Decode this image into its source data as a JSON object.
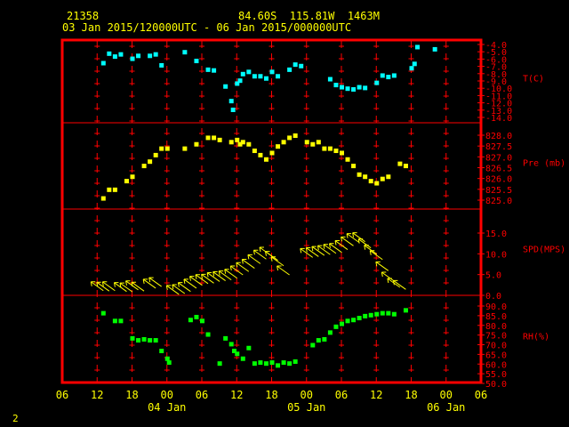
{
  "header": {
    "station": "21358",
    "location": "84.60S  115.81W  1463M",
    "period": "03 Jan 2015/120000UTC - 06 Jan 2015/000000UTC"
  },
  "footer": {
    "page": "2"
  },
  "colors": {
    "frame": "#ff0000",
    "grid": "#ff0000",
    "temp": "#00ffff",
    "pres": "#ffff00",
    "wind": "#ffff00",
    "rh": "#00ff00",
    "text": "#ffff00"
  },
  "chart_data": [
    {
      "type": "scatter",
      "name": "T(C)",
      "ylabel": "T(C)",
      "ylim": [
        -14,
        -4
      ],
      "ticks": [
        "-4.0",
        "-5.0",
        "-6.0",
        "-7.0",
        "-8.0",
        "-9.0",
        "-10.0",
        "-11.0",
        "-12.0",
        "-13.0",
        "-14.0"
      ],
      "tick_values": [
        -4,
        -5,
        -6,
        -7,
        -8,
        -9,
        -10,
        -11,
        -12,
        -13,
        -14
      ],
      "points": [
        [
          13,
          -6.5
        ],
        [
          14,
          -5.2
        ],
        [
          15,
          -5.6
        ],
        [
          16,
          -5.3
        ],
        [
          18,
          -5.9
        ],
        [
          19,
          -5.5
        ],
        [
          21,
          -5.5
        ],
        [
          22,
          -5.3
        ],
        [
          23,
          -6.8
        ],
        [
          27,
          -5.0
        ],
        [
          29,
          -6.2
        ],
        [
          31,
          -7.4
        ],
        [
          32,
          -7.5
        ],
        [
          34,
          -9.7
        ],
        [
          35,
          -11.7
        ],
        [
          35.3,
          -12.9
        ],
        [
          36,
          -9.3
        ],
        [
          36.5,
          -8.9
        ],
        [
          37,
          -8.0
        ],
        [
          38,
          -7.7
        ],
        [
          39,
          -8.3
        ],
        [
          40,
          -8.3
        ],
        [
          41,
          -8.6
        ],
        [
          42,
          -7.7
        ],
        [
          43,
          -8.3
        ],
        [
          45,
          -7.4
        ],
        [
          46,
          -6.7
        ],
        [
          47,
          -6.9
        ],
        [
          52,
          -8.7
        ],
        [
          53,
          -9.5
        ],
        [
          54,
          -9.8
        ],
        [
          55,
          -10.0
        ],
        [
          56,
          -10.1
        ],
        [
          57,
          -9.8
        ],
        [
          58,
          -9.9
        ],
        [
          60,
          -9.2
        ],
        [
          61,
          -8.2
        ],
        [
          62,
          -8.4
        ],
        [
          63,
          -8.2
        ],
        [
          66,
          -7.2
        ],
        [
          66.5,
          -6.6
        ],
        [
          67,
          -4.3
        ],
        [
          70,
          -4.6
        ]
      ]
    },
    {
      "type": "scatter",
      "name": "Pre (mb)",
      "ylabel": "Pre (mb)",
      "ylim": [
        825.0,
        828.0
      ],
      "ticks": [
        "828.0",
        "827.5",
        "827.0",
        "826.5",
        "826.0",
        "825.5",
        "825.0"
      ],
      "tick_values": [
        828.0,
        827.5,
        827.0,
        826.5,
        826.0,
        825.5,
        825.0
      ],
      "points": [
        [
          13,
          825.1
        ],
        [
          14,
          825.5
        ],
        [
          15,
          825.5
        ],
        [
          17,
          825.9
        ],
        [
          18,
          826.1
        ],
        [
          20,
          826.6
        ],
        [
          21,
          826.8
        ],
        [
          22,
          827.1
        ],
        [
          23,
          827.4
        ],
        [
          24,
          827.4
        ],
        [
          27,
          827.4
        ],
        [
          29,
          827.6
        ],
        [
          31,
          827.9
        ],
        [
          32,
          827.9
        ],
        [
          33,
          827.8
        ],
        [
          35,
          827.7
        ],
        [
          36,
          827.8
        ],
        [
          36.5,
          827.6
        ],
        [
          37,
          827.7
        ],
        [
          38,
          827.6
        ],
        [
          39,
          827.3
        ],
        [
          40,
          827.1
        ],
        [
          41,
          826.9
        ],
        [
          42,
          827.2
        ],
        [
          43,
          827.5
        ],
        [
          44,
          827.7
        ],
        [
          45,
          827.9
        ],
        [
          46,
          828.0
        ],
        [
          48,
          827.7
        ],
        [
          49,
          827.6
        ],
        [
          50,
          827.7
        ],
        [
          51,
          827.4
        ],
        [
          52,
          827.4
        ],
        [
          53,
          827.3
        ],
        [
          54,
          827.2
        ],
        [
          55,
          826.9
        ],
        [
          56,
          826.6
        ],
        [
          57,
          826.2
        ],
        [
          58,
          826.1
        ],
        [
          59,
          825.9
        ],
        [
          60,
          825.8
        ],
        [
          61,
          826.0
        ],
        [
          62,
          826.1
        ],
        [
          64,
          826.7
        ],
        [
          65,
          826.6
        ]
      ]
    },
    {
      "type": "scatter",
      "name": "SPD(MPS)",
      "ylabel": "SPD(MPS)",
      "ylim": [
        0,
        15
      ],
      "ticks": [
        "15.0",
        "10.0",
        "5.0",
        "0.0"
      ],
      "tick_values": [
        15,
        10,
        5,
        0
      ],
      "points": [
        [
          12,
          2.2
        ],
        [
          13,
          2.1
        ],
        [
          14,
          2.2
        ],
        [
          16,
          2.0
        ],
        [
          17,
          1.9
        ],
        [
          18,
          2.4
        ],
        [
          19,
          2.1
        ],
        [
          21,
          2.8
        ],
        [
          22,
          3.2
        ],
        [
          25,
          1.3
        ],
        [
          26,
          1.5
        ],
        [
          27,
          2.0
        ],
        [
          28,
          2.8
        ],
        [
          29,
          3.5
        ],
        [
          30,
          3.9
        ],
        [
          31,
          4.0
        ],
        [
          32,
          4.4
        ],
        [
          33,
          4.6
        ],
        [
          34,
          4.8
        ],
        [
          35,
          5.2
        ],
        [
          36,
          6.0
        ],
        [
          37,
          6.8
        ],
        [
          38,
          7.6
        ],
        [
          39,
          8.7
        ],
        [
          40,
          9.8
        ],
        [
          41,
          10.5
        ],
        [
          42,
          9.5
        ],
        [
          43,
          8.2
        ],
        [
          44,
          6.0
        ],
        [
          48,
          10.2
        ],
        [
          49,
          10.4
        ],
        [
          50,
          10.7
        ],
        [
          51,
          10.9
        ],
        [
          52,
          11.2
        ],
        [
          53,
          11.4
        ],
        [
          54,
          12.1
        ],
        [
          55,
          13.0
        ],
        [
          56,
          13.8
        ],
        [
          57,
          14.0
        ],
        [
          58,
          12.5
        ],
        [
          59,
          11.0
        ],
        [
          60,
          9.7
        ],
        [
          61,
          7.0
        ],
        [
          62,
          4.5
        ],
        [
          63,
          3.0
        ],
        [
          64,
          2.5
        ]
      ]
    },
    {
      "type": "scatter",
      "name": "RH(%)",
      "ylabel": "RH(%)",
      "ylim": [
        50,
        90
      ],
      "ticks": [
        "90.0",
        "85.0",
        "80.0",
        "75.0",
        "70.0",
        "65.0",
        "60.0",
        "55.0",
        "50.0"
      ],
      "tick_values": [
        90,
        85,
        80,
        75,
        70,
        65,
        60,
        55,
        50
      ],
      "points": [
        [
          13,
          86.5
        ],
        [
          15,
          82.5
        ],
        [
          16,
          82.5
        ],
        [
          18,
          73.5
        ],
        [
          19,
          72.5
        ],
        [
          20,
          73.0
        ],
        [
          21,
          72.5
        ],
        [
          22,
          72.5
        ],
        [
          23,
          67.0
        ],
        [
          24,
          63.0
        ],
        [
          24.3,
          61.0
        ],
        [
          28,
          83.0
        ],
        [
          29,
          84.5
        ],
        [
          30,
          82.5
        ],
        [
          31,
          75.5
        ],
        [
          33,
          60.5
        ],
        [
          34,
          73.5
        ],
        [
          35,
          70.5
        ],
        [
          35.5,
          67.0
        ],
        [
          36,
          65.5
        ],
        [
          37,
          63.0
        ],
        [
          38,
          68.5
        ],
        [
          39,
          60.5
        ],
        [
          40,
          61.0
        ],
        [
          41,
          60.5
        ],
        [
          42,
          61.0
        ],
        [
          43,
          59.5
        ],
        [
          44,
          61.0
        ],
        [
          45,
          60.5
        ],
        [
          46,
          61.5
        ],
        [
          49,
          70.0
        ],
        [
          50,
          72.5
        ],
        [
          51,
          73.0
        ],
        [
          52,
          76.5
        ],
        [
          53,
          79.5
        ],
        [
          54,
          81.0
        ],
        [
          55,
          82.5
        ],
        [
          56,
          83.0
        ],
        [
          57,
          84.0
        ],
        [
          58,
          85.0
        ],
        [
          59,
          85.5
        ],
        [
          60,
          86.0
        ],
        [
          61,
          86.5
        ],
        [
          62,
          86.5
        ],
        [
          63,
          86.0
        ],
        [
          65,
          88.0
        ]
      ]
    }
  ],
  "x_axis": {
    "xlim": [
      6,
      78
    ],
    "tick_hours": [
      6,
      12,
      18,
      24,
      30,
      36,
      42,
      48,
      54,
      60,
      66,
      72,
      78
    ],
    "tick_labels": [
      "06",
      "12",
      "18",
      "00",
      "06",
      "12",
      "18",
      "00",
      "06",
      "12",
      "18",
      "00",
      "06"
    ],
    "date_labels": [
      {
        "hour": 24,
        "text": "04 Jan"
      },
      {
        "hour": 48,
        "text": "05 Jan"
      },
      {
        "hour": 72,
        "text": "06 Jan"
      }
    ]
  }
}
